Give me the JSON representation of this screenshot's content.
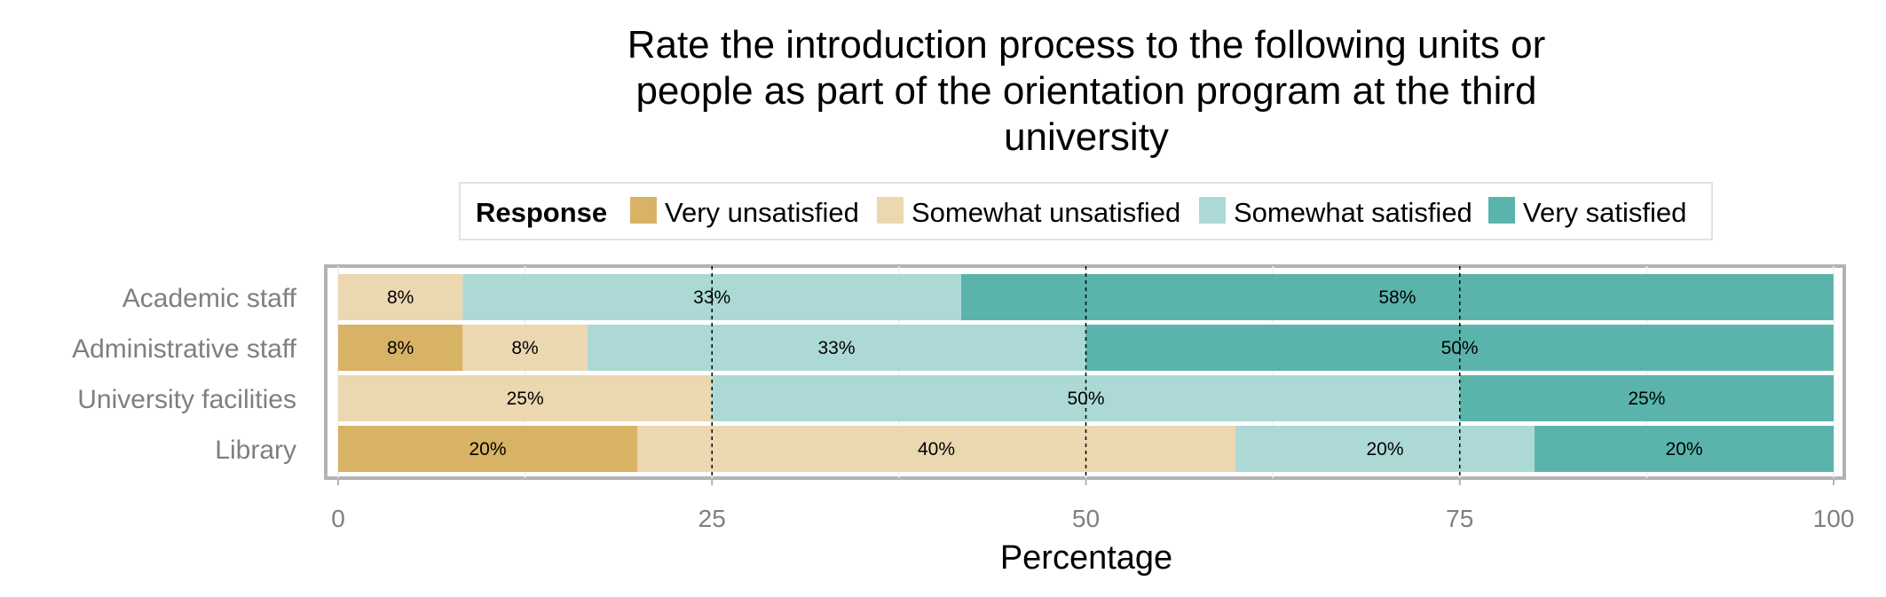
{
  "chart_data": {
    "type": "bar",
    "orientation": "horizontal",
    "stacked": true,
    "title_lines": [
      "Rate the introduction process to the following units or",
      "people as part of the orientation program at the third",
      "university"
    ],
    "xlabel": "Percentage",
    "ylabel": "",
    "xlim": [
      0,
      100
    ],
    "x_ticks": [
      0,
      25,
      50,
      75,
      100
    ],
    "reference_lines": [
      25,
      50,
      75
    ],
    "legend": {
      "title": "Response",
      "position": "top"
    },
    "categories": [
      "Academic staff",
      "Administrative staff",
      "University facilities",
      "Library"
    ],
    "series": [
      {
        "name": "Very unsatisfied",
        "color": "#d8b365",
        "values": [
          0,
          8.33,
          0,
          20
        ],
        "labels": [
          "",
          "8%",
          "",
          "20%"
        ]
      },
      {
        "name": "Somewhat unsatisfied",
        "color": "#ebd8b0",
        "values": [
          8.33,
          8.33,
          25,
          40
        ],
        "labels": [
          "8%",
          "8%",
          "25%",
          "40%"
        ]
      },
      {
        "name": "Somewhat satisfied",
        "color": "#acd9d6",
        "values": [
          33.33,
          33.33,
          50,
          20
        ],
        "labels": [
          "33%",
          "33%",
          "50%",
          "20%"
        ]
      },
      {
        "name": "Very satisfied",
        "color": "#5ab4ac",
        "values": [
          58.33,
          50,
          25,
          20
        ],
        "labels": [
          "58%",
          "50%",
          "25%",
          "20%"
        ]
      }
    ]
  }
}
